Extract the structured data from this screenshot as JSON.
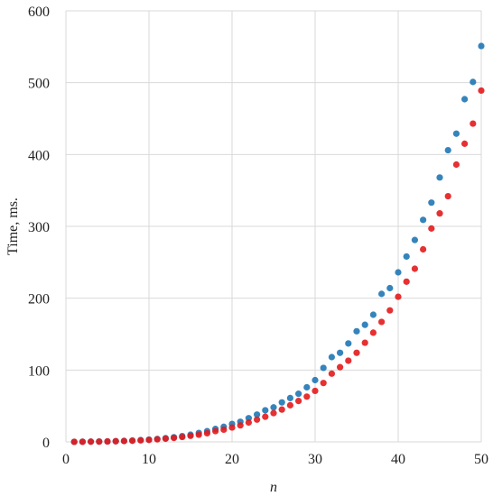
{
  "chart_data": {
    "type": "scatter",
    "title": "",
    "xlabel": "n",
    "ylabel": "Time, ms.",
    "xlim": [
      0,
      50
    ],
    "ylim": [
      0,
      600
    ],
    "xticks": [
      0,
      10,
      20,
      30,
      40,
      50
    ],
    "yticks": [
      0,
      100,
      200,
      300,
      400,
      500,
      600
    ],
    "grid": true,
    "legend": "none",
    "x": [
      1,
      2,
      3,
      4,
      5,
      6,
      7,
      8,
      9,
      10,
      11,
      12,
      13,
      14,
      15,
      16,
      17,
      18,
      19,
      20,
      21,
      22,
      23,
      24,
      25,
      26,
      27,
      28,
      29,
      30,
      31,
      32,
      33,
      34,
      35,
      36,
      37,
      38,
      39,
      40,
      41,
      42,
      43,
      44,
      45,
      46,
      47,
      48,
      49,
      50
    ],
    "series": [
      {
        "color": "#1f77b4",
        "values": [
          0.1,
          0.2,
          0.3,
          0.5,
          0.7,
          1,
          1.4,
          1.9,
          2.5,
          3.2,
          4.1,
          5.2,
          6.5,
          8.1,
          10,
          12.5,
          15,
          18,
          21,
          25,
          28,
          33,
          38,
          44,
          48,
          55,
          61,
          67,
          76,
          86,
          103,
          118,
          124,
          137,
          154,
          163,
          177,
          206,
          214,
          236,
          258,
          281,
          309,
          333,
          368,
          406,
          429,
          477,
          501,
          551
        ]
      },
      {
        "color": "#e31a1c",
        "values": [
          0.1,
          0.2,
          0.3,
          0.4,
          0.6,
          0.9,
          1.2,
          1.6,
          2.1,
          2.7,
          3.5,
          4.4,
          5.5,
          6.8,
          8.4,
          10,
          12,
          15,
          17,
          20,
          23,
          27,
          31,
          35,
          40,
          45,
          51,
          57,
          63,
          71,
          82,
          95,
          104,
          113,
          124,
          138,
          152,
          167,
          183,
          202,
          223,
          241,
          268,
          297,
          318,
          342,
          386,
          415,
          443,
          489
        ]
      }
    ]
  }
}
